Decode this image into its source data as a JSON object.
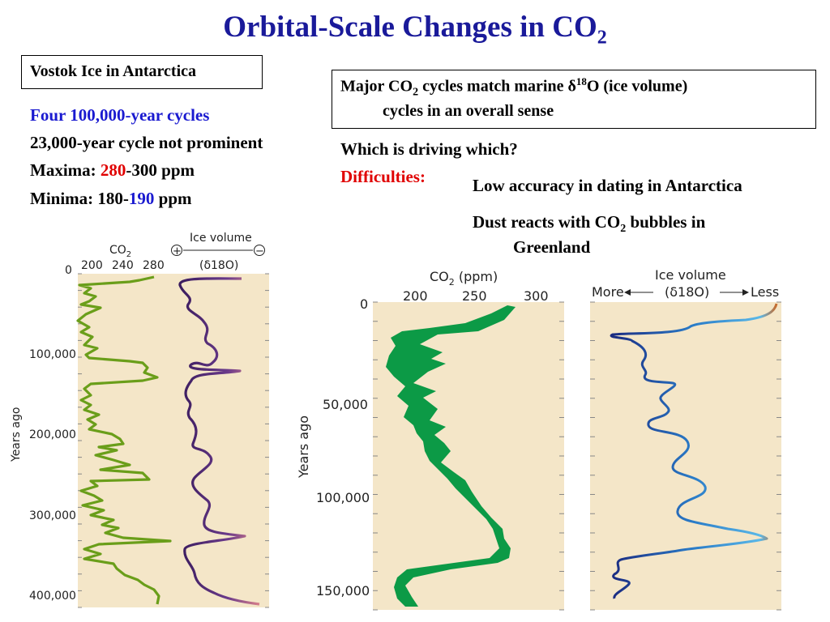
{
  "title": {
    "main": "Orbital-Scale Changes in CO",
    "sub": "2"
  },
  "vostok_box": {
    "label": "Vostok Ice in Antarctica"
  },
  "left_points": {
    "line1": "Four 100,000-year cycles",
    "line2": "23,000-year cycle not prominent",
    "line3_a": "Maxima: ",
    "line3_b": "280",
    "line3_c": "-300 ppm",
    "line4_a": "Minima: 180-",
    "line4_b": "190",
    "line4_c": " ppm"
  },
  "major_box": {
    "a": "Major CO",
    "a_sub": "2",
    "b": " cycles match marine δ",
    "b_sup": "18",
    "c": "O (ice volume)",
    "d": "cycles in an overall sense"
  },
  "question": "Which is driving which?",
  "difficulties": {
    "label": "Difficulties:",
    "item1": "Low accuracy in dating in Antarctica",
    "item2_a": "Dust reacts with CO",
    "item2_sub": "2",
    "item2_b": " bubbles in",
    "item2_c": "Greenland"
  },
  "colors": {
    "title": "#1a1a9a",
    "blue": "#1a1ad0",
    "red": "#e00000",
    "panel_bg": "#f4e6c8",
    "co2_left": "#6a9e1a",
    "co2_right": "#0c9a46"
  },
  "left_chart": {
    "co2_label": "CO",
    "co2_sub": "2",
    "co2_ticks": [
      "200",
      "240",
      "280"
    ],
    "ice_label": "Ice volume",
    "ice_axis": "(δ18O)",
    "plus": "+",
    "minus": "−",
    "y_label": "Years ago",
    "y_ticks": [
      "0",
      "100,000",
      "200,000",
      "300,000",
      "400,000"
    ]
  },
  "right_chart": {
    "co2_label": "CO",
    "co2_sub": "2",
    "co2_unit": " (ppm)",
    "co2_ticks": [
      "200",
      "250",
      "300"
    ],
    "ice_label": "Ice volume",
    "ice_axis": "(δ18O)",
    "more": "More",
    "less": "Less",
    "y_label": "Years ago",
    "y_ticks": [
      "0",
      "50,000",
      "100,000",
      "150,000"
    ]
  },
  "chart_data": [
    {
      "type": "line",
      "title": "",
      "ylabel": "Years ago",
      "ylim": [
        0,
        410000
      ],
      "series": [
        {
          "name": "CO2",
          "x_ticks": [
            "200",
            "240",
            "280"
          ],
          "values": [
            [
              0,
              280
            ],
            [
              20000,
              190
            ],
            [
              50000,
              200
            ],
            [
              100000,
              250
            ],
            [
              130000,
              285
            ],
            [
              150000,
              190
            ],
            [
              200000,
              230
            ],
            [
              240000,
              280
            ],
            [
              260000,
              190
            ],
            [
              300000,
              230
            ],
            [
              330000,
              290
            ],
            [
              350000,
              195
            ],
            [
              400000,
              270
            ]
          ]
        },
        {
          "name": "Ice volume (δ18O)",
          "values": [
            [
              0,
              0.2
            ],
            [
              20000,
              0.8
            ],
            [
              100000,
              0.9
            ],
            [
              125000,
              0.1
            ],
            [
              135000,
              0.9
            ],
            [
              240000,
              0.4
            ],
            [
              330000,
              0.1
            ],
            [
              340000,
              0.9
            ],
            [
              405000,
              0.0
            ]
          ]
        }
      ]
    },
    {
      "type": "area",
      "title": "",
      "ylabel": "Years ago",
      "ylim": [
        0,
        160000
      ],
      "series": [
        {
          "name": "CO2 (ppm)",
          "x_ticks": [
            "200",
            "250",
            "300"
          ],
          "values": [
            [
              0,
              280
            ],
            [
              10000,
              275
            ],
            [
              20000,
              200
            ],
            [
              40000,
              215
            ],
            [
              60000,
              230
            ],
            [
              80000,
              250
            ],
            [
              100000,
              255
            ],
            [
              120000,
              275
            ],
            [
              135000,
              280
            ],
            [
              140000,
              210
            ],
            [
              150000,
              200
            ],
            [
              155000,
              195
            ]
          ]
        },
        {
          "name": "Ice volume (δ18O)",
          "values": [
            [
              0,
              0.95
            ],
            [
              5000,
              0.55
            ],
            [
              15000,
              0.1
            ],
            [
              40000,
              0.3
            ],
            [
              80000,
              0.55
            ],
            [
              105000,
              0.5
            ],
            [
              125000,
              0.9
            ],
            [
              135000,
              0.15
            ],
            [
              145000,
              0.2
            ],
            [
              155000,
              0.15
            ]
          ]
        }
      ]
    }
  ]
}
